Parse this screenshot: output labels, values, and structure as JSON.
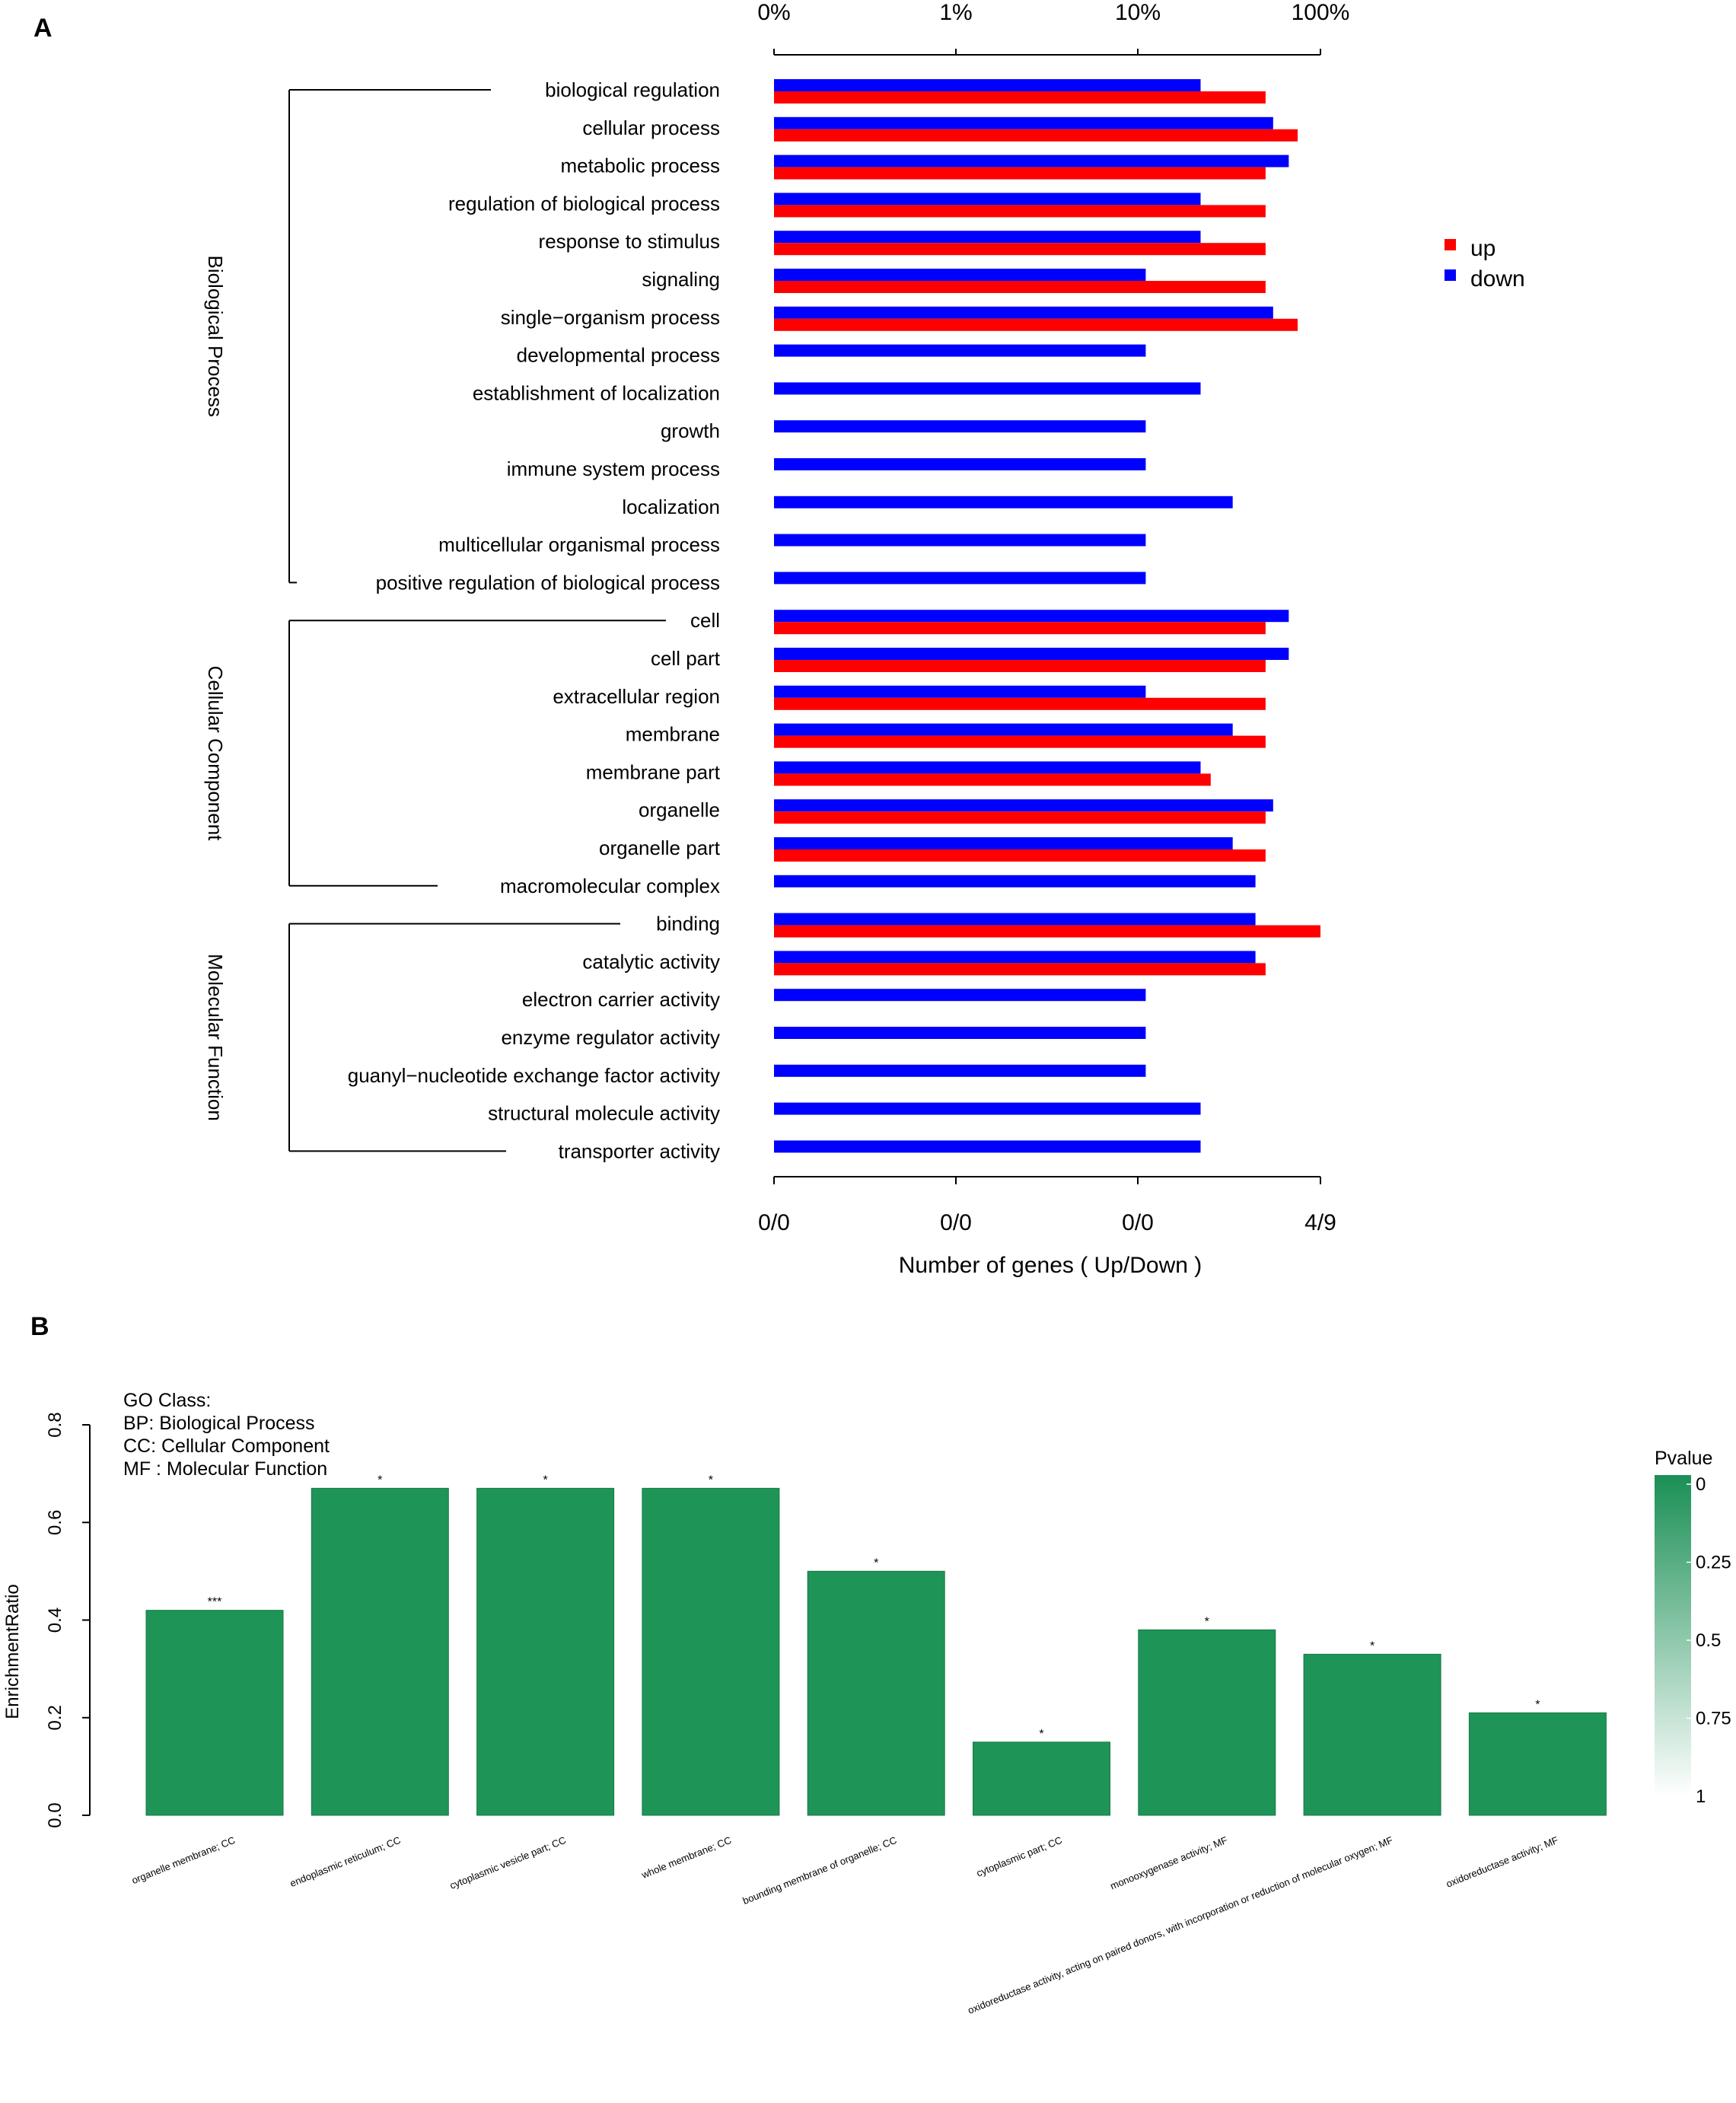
{
  "panel_labels": {
    "a": "A",
    "b": "B"
  },
  "chart_data": [
    {
      "type": "bar",
      "orientation": "horizontal",
      "id": "panel-a",
      "x_scale": "log (percent of genes)",
      "top_ticks": [
        "0%",
        "1%",
        "10%",
        "100%"
      ],
      "bottom_ticks": [
        "0/0",
        "0/0",
        "0/0",
        "4/9"
      ],
      "xlabel": "Number of genes ( Up/Down )",
      "legend": [
        {
          "name": "up",
          "color": "#ff0000"
        },
        {
          "name": "down",
          "color": "#0000ff"
        }
      ],
      "legend_position": "right",
      "groups": [
        {
          "name": "Biological Process",
          "first": 0,
          "last": 13
        },
        {
          "name": "Cellular Component",
          "first": 14,
          "last": 21
        },
        {
          "name": "Molecular Function",
          "first": 22,
          "last": 28
        }
      ],
      "categories": [
        "biological regulation",
        "cellular process",
        "metabolic process",
        "regulation of biological process",
        "response to stimulus",
        "signaling",
        "single−organism process",
        "developmental process",
        "establishment of localization",
        "growth",
        "immune system process",
        "localization",
        "multicellular organismal process",
        "positive regulation of biological process",
        "cell",
        "cell part",
        "extracellular region",
        "membrane",
        "membrane part",
        "organelle",
        "organelle part",
        "macromolecular complex",
        "binding",
        "catalytic activity",
        "electron carrier activity",
        "enzyme regulator activity",
        "guanyl−nucleotide exchange factor activity",
        "structural molecule activity",
        "transporter activity"
      ],
      "series": [
        {
          "name": "down",
          "color": "#0000ff",
          "values": [
            22,
            55,
            67,
            22,
            22,
            11,
            55,
            11,
            22,
            11,
            11,
            33,
            11,
            11,
            67,
            67,
            11,
            33,
            22,
            55,
            33,
            44,
            44,
            44,
            11,
            11,
            11,
            22,
            22
          ]
        },
        {
          "name": "up",
          "color": "#ff0000",
          "values": [
            50,
            75,
            50,
            50,
            50,
            50,
            75,
            0,
            0,
            0,
            0,
            0,
            0,
            0,
            50,
            50,
            50,
            50,
            25,
            50,
            50,
            0,
            100,
            50,
            0,
            0,
            0,
            0,
            0
          ]
        }
      ]
    },
    {
      "type": "bar",
      "id": "panel-b",
      "ylabel": "EnrichmentRatio",
      "ylim": [
        0,
        0.8
      ],
      "yticks": [
        "0.0",
        "0.2",
        "0.4",
        "0.6",
        "0.8"
      ],
      "legend_title_lines": [
        "GO Class:",
        "BP: Biological Process",
        "CC: Cellular Component",
        "MF : Molecular Function"
      ],
      "categories": [
        "organelle membrane;  CC",
        "endoplasmic reticulum;  CC",
        "cytoplasmic vesicle part;  CC",
        "whole membrane;  CC",
        "bounding membrane of organelle;  CC",
        "cytoplasmic part;  CC",
        "monooxygenase activity;  MF",
        "oxidoreductase activity, acting on paired donors, with incorporation or reduction of molecular oxygen;  MF",
        "oxidoreductase activity;  MF"
      ],
      "values": [
        0.42,
        0.67,
        0.67,
        0.67,
        0.5,
        0.15,
        0.38,
        0.33,
        0.21
      ],
      "significance": [
        "***",
        "*",
        "*",
        "*",
        "*",
        "*",
        "*",
        "*",
        "*"
      ],
      "bar_color": "#1f9457",
      "colorbar": {
        "title": "Pvalue",
        "ticks": [
          "0",
          "0.25",
          "0.5",
          "0.75",
          "1"
        ],
        "color_low": "#1a8f55",
        "color_high": "#ffffff"
      }
    }
  ]
}
